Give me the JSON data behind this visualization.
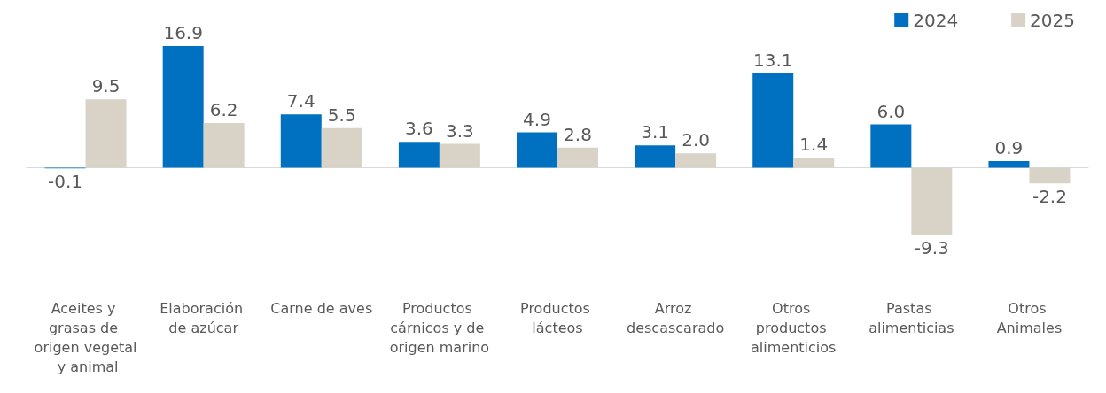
{
  "chart_data": {
    "type": "bar",
    "categories": [
      "Aceites y grasas de origen vegetal y animal",
      "Elaboración de azúcar",
      "Carne de aves",
      "Productos cárnicos y de origen marino",
      "Productos lácteos",
      "Arroz descascarado",
      "Otros productos alimenticios",
      "Pastas alimenticias",
      "Otros Animales"
    ],
    "series": [
      {
        "name": "2024",
        "color": "#0070c0",
        "values": [
          -0.1,
          16.9,
          7.4,
          3.6,
          4.9,
          3.1,
          13.1,
          6.0,
          0.9
        ],
        "value_labels": [
          "-0.1",
          "16.9",
          "7.4",
          "3.6",
          "4.9",
          "3.1",
          "13.1",
          "6.0",
          "0.9"
        ]
      },
      {
        "name": "2025",
        "color": "#d9d3c7",
        "values": [
          9.5,
          6.2,
          5.5,
          3.3,
          2.8,
          2.0,
          1.4,
          -9.3,
          -2.2
        ],
        "value_labels": [
          "9.5",
          "6.2",
          "5.5",
          "3.3",
          "2.8",
          "2.0",
          "1.4",
          "-9.3",
          "-2.2"
        ]
      }
    ],
    "legend": "top right"
  }
}
